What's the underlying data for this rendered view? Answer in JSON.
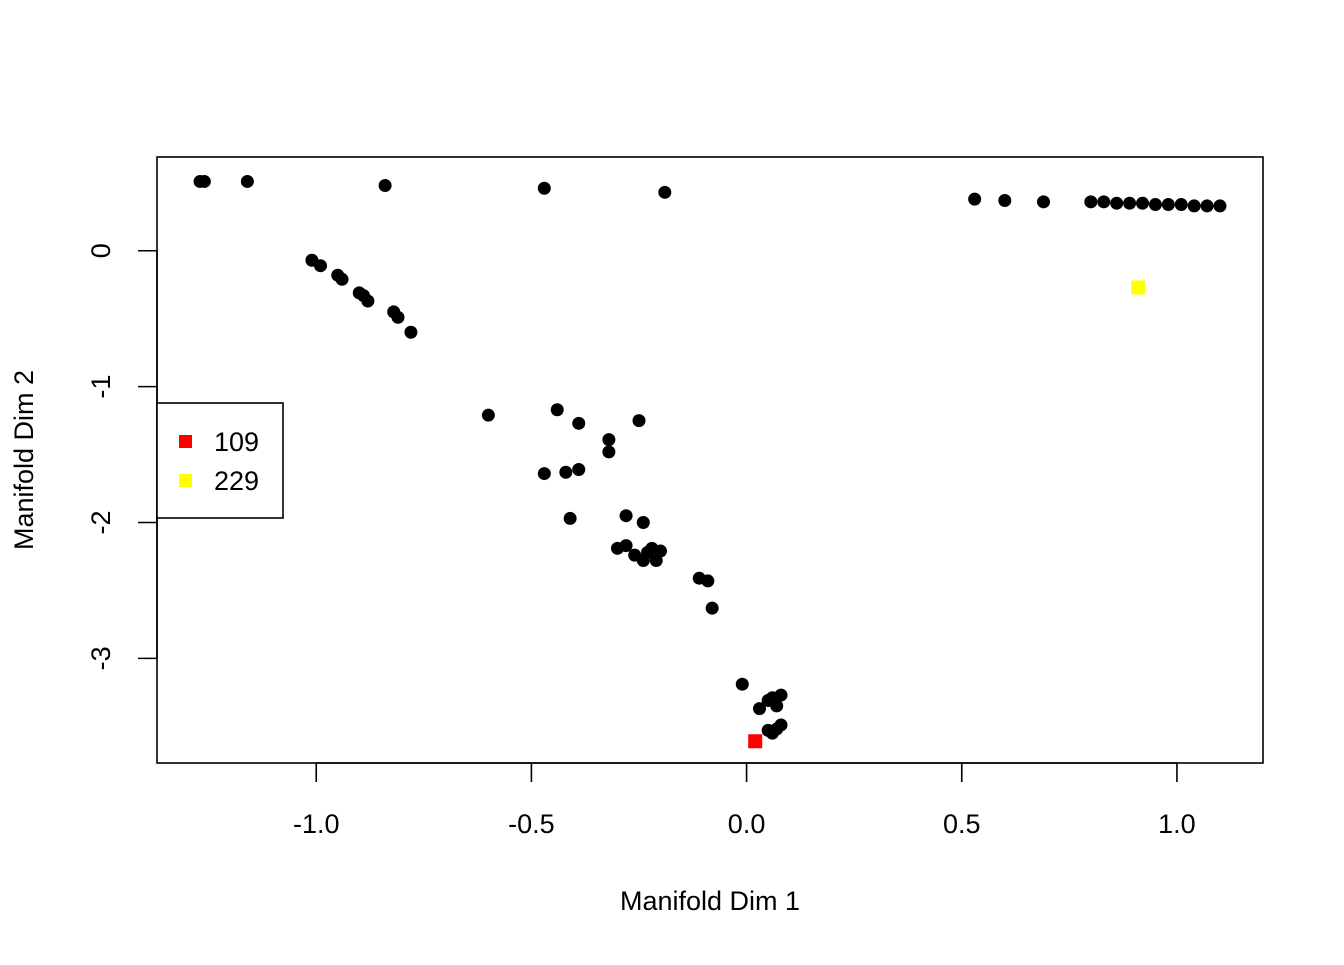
{
  "chart_data": {
    "type": "scatter",
    "title": "",
    "xlabel": "Manifold Dim 1",
    "ylabel": "Manifold Dim 2",
    "xlim": [
      -1.37,
      1.2
    ],
    "ylim": [
      -3.77,
      0.69
    ],
    "grid": false,
    "x_ticks": [
      -1.0,
      -0.5,
      0.0,
      0.5,
      1.0
    ],
    "x_tick_labels": [
      "-1.0",
      "-0.5",
      "0.0",
      "0.5",
      "1.0"
    ],
    "y_ticks": [
      0,
      -1,
      -2,
      -3
    ],
    "y_tick_labels": [
      "0",
      "-1",
      "-2",
      "-3"
    ],
    "legend": {
      "placement": "left",
      "entries": [
        {
          "label": "109",
          "color": "#ff0000",
          "marker": "square"
        },
        {
          "label": "229",
          "color": "#ffff00",
          "marker": "square"
        }
      ]
    },
    "series": [
      {
        "color": "#000000",
        "marker": "circle",
        "points": [
          [
            -1.27,
            0.51
          ],
          [
            -1.26,
            0.51
          ],
          [
            -1.16,
            0.51
          ],
          [
            -0.84,
            0.48
          ],
          [
            -0.47,
            0.46
          ],
          [
            -0.19,
            0.43
          ],
          [
            -1.01,
            -0.07
          ],
          [
            -0.99,
            -0.11
          ],
          [
            -0.95,
            -0.18
          ],
          [
            -0.94,
            -0.21
          ],
          [
            -0.9,
            -0.31
          ],
          [
            -0.89,
            -0.33
          ],
          [
            -0.88,
            -0.37
          ],
          [
            -0.82,
            -0.45
          ],
          [
            -0.81,
            -0.49
          ],
          [
            -0.78,
            -0.6
          ],
          [
            -0.6,
            -1.21
          ],
          [
            -0.44,
            -1.17
          ],
          [
            -0.39,
            -1.27
          ],
          [
            -0.25,
            -1.25
          ],
          [
            -0.32,
            -1.39
          ],
          [
            -0.32,
            -1.48
          ],
          [
            -0.47,
            -1.64
          ],
          [
            -0.42,
            -1.63
          ],
          [
            -0.39,
            -1.61
          ],
          [
            -0.41,
            -1.97
          ],
          [
            -0.28,
            -1.95
          ],
          [
            -0.24,
            -2.0
          ],
          [
            -0.3,
            -2.19
          ],
          [
            -0.28,
            -2.17
          ],
          [
            -0.26,
            -2.24
          ],
          [
            -0.24,
            -2.28
          ],
          [
            -0.23,
            -2.22
          ],
          [
            -0.22,
            -2.19
          ],
          [
            -0.21,
            -2.28
          ],
          [
            -0.2,
            -2.21
          ],
          [
            -0.11,
            -2.41
          ],
          [
            -0.09,
            -2.43
          ],
          [
            -0.08,
            -2.63
          ],
          [
            -0.01,
            -3.19
          ],
          [
            0.03,
            -3.37
          ],
          [
            0.05,
            -3.31
          ],
          [
            0.06,
            -3.29
          ],
          [
            0.07,
            -3.35
          ],
          [
            0.08,
            -3.27
          ],
          [
            0.05,
            -3.53
          ],
          [
            0.06,
            -3.55
          ],
          [
            0.07,
            -3.52
          ],
          [
            0.08,
            -3.49
          ],
          [
            0.53,
            0.38
          ],
          [
            0.6,
            0.37
          ],
          [
            0.69,
            0.36
          ],
          [
            0.8,
            0.36
          ],
          [
            0.83,
            0.36
          ],
          [
            0.86,
            0.35
          ],
          [
            0.89,
            0.35
          ],
          [
            0.92,
            0.35
          ],
          [
            0.95,
            0.34
          ],
          [
            0.98,
            0.34
          ],
          [
            1.01,
            0.34
          ],
          [
            1.04,
            0.33
          ],
          [
            1.07,
            0.33
          ],
          [
            1.1,
            0.33
          ]
        ]
      },
      {
        "name": "109",
        "color": "#ff0000",
        "marker": "square",
        "points": [
          [
            0.02,
            -3.61
          ]
        ]
      },
      {
        "name": "229",
        "color": "#ffff00",
        "marker": "square",
        "points": [
          [
            0.91,
            -0.27
          ]
        ]
      }
    ]
  }
}
